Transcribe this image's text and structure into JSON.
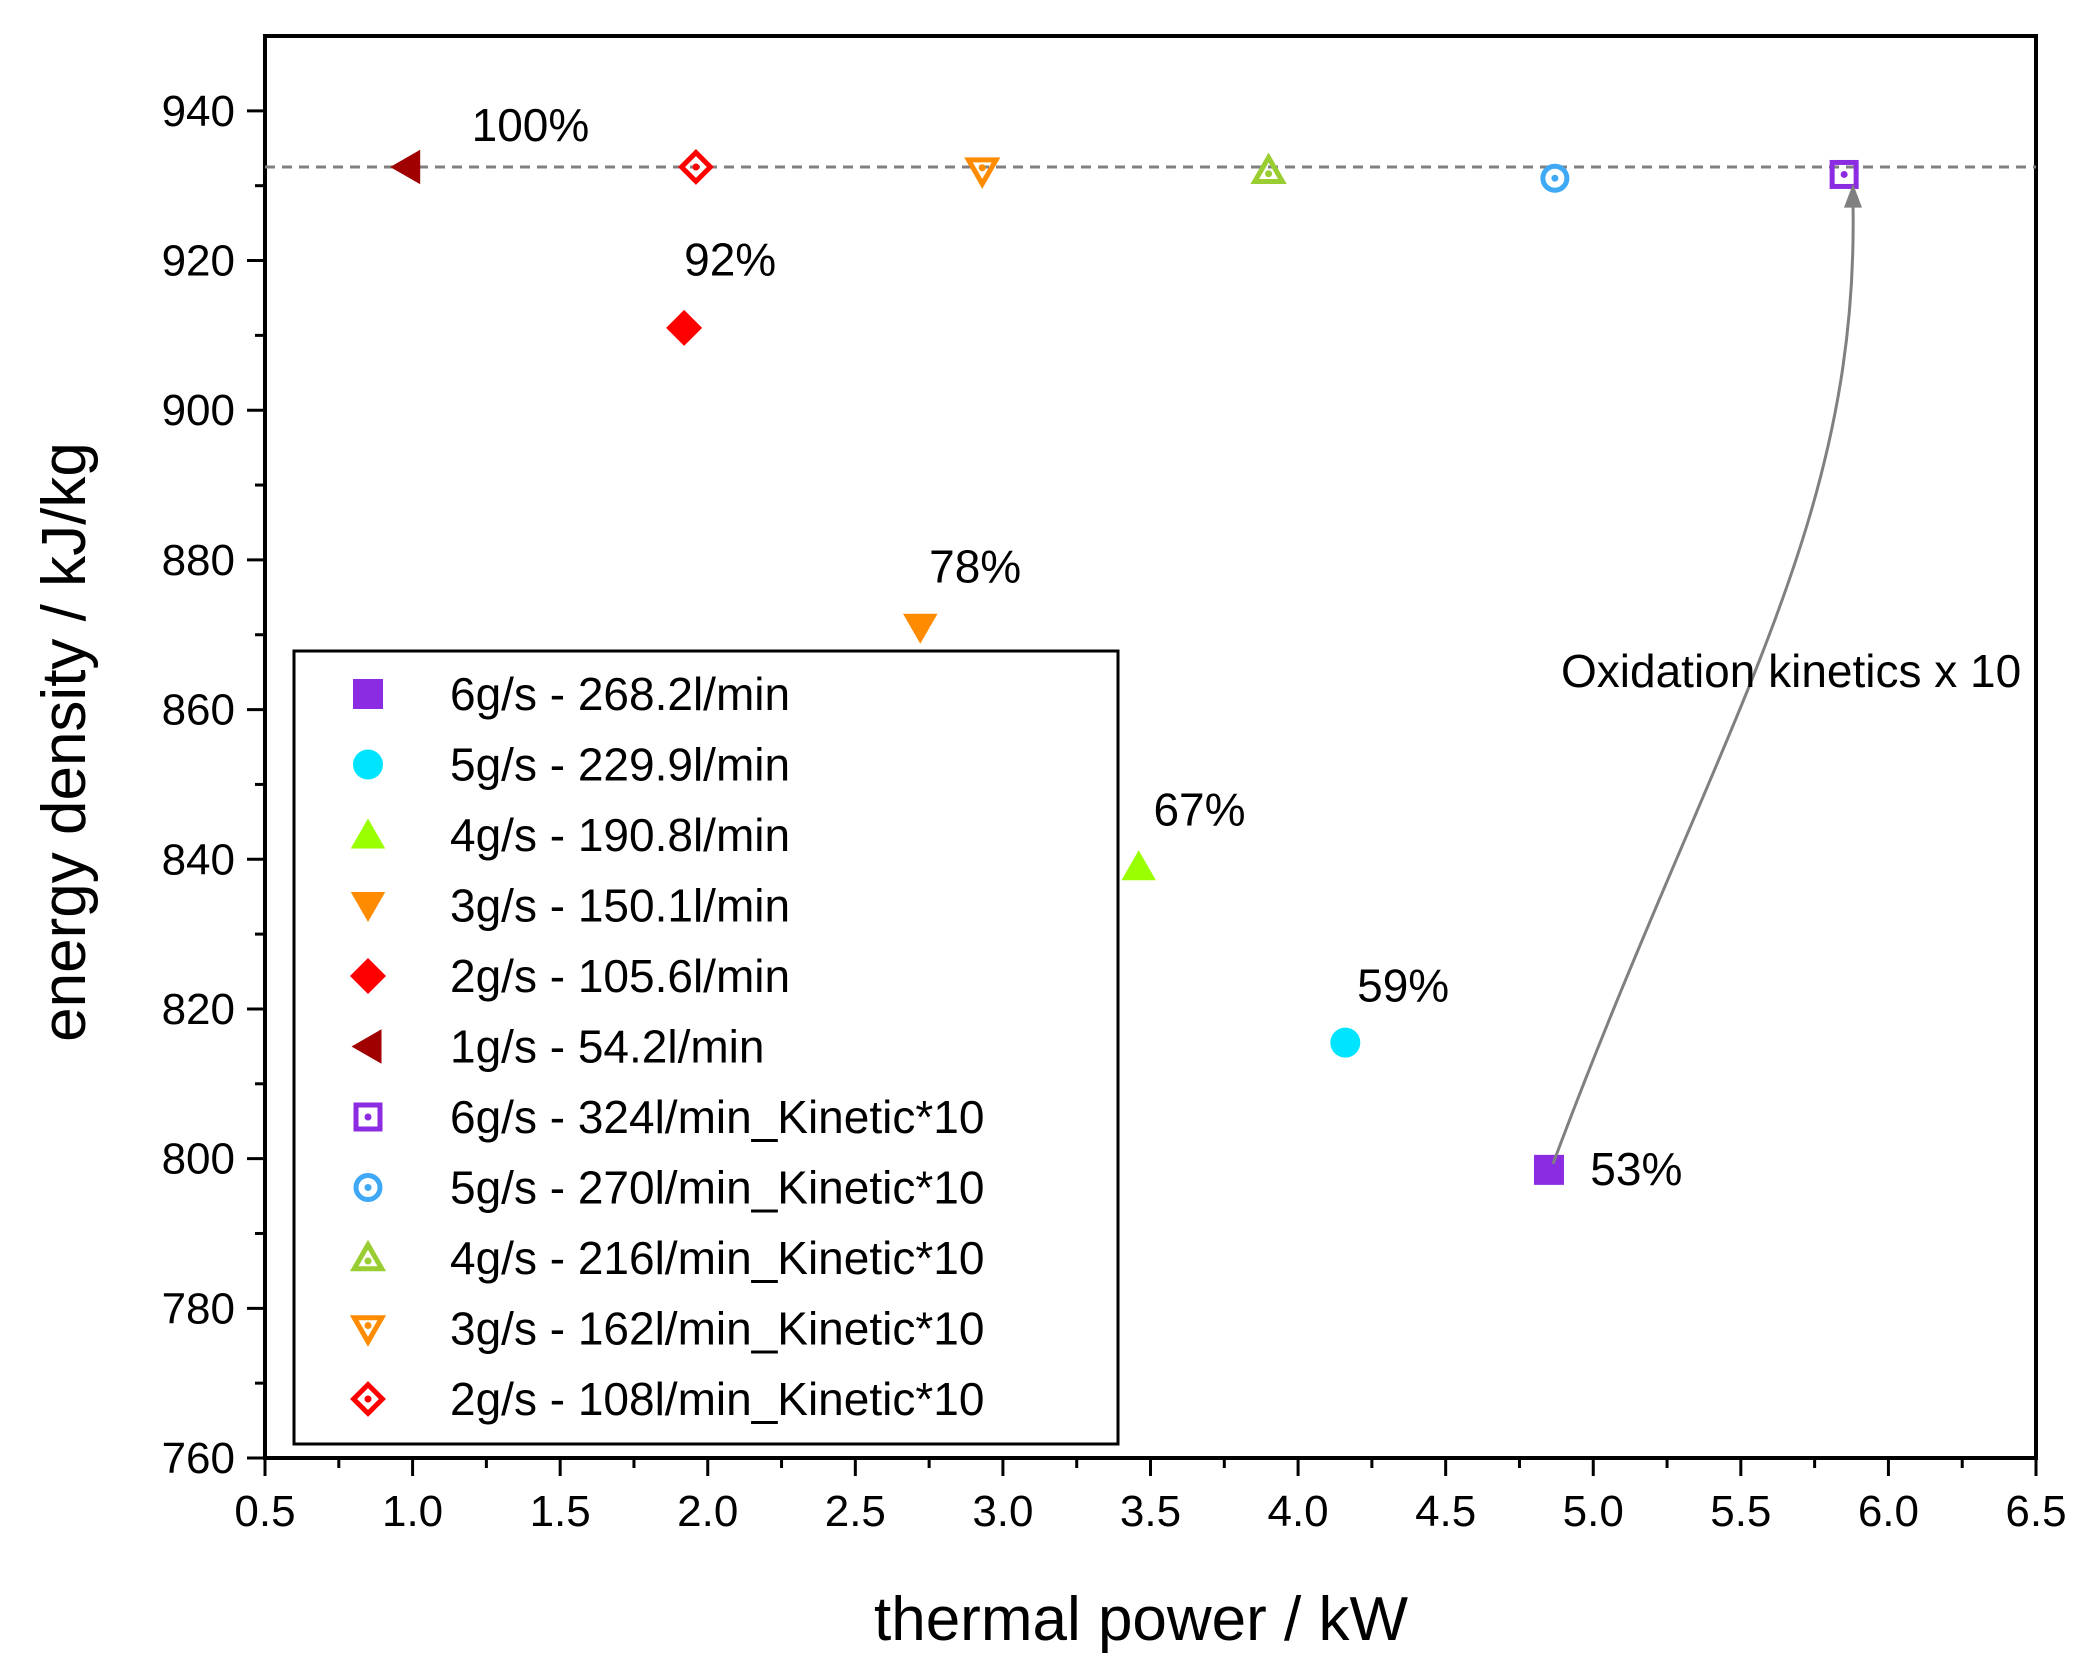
{
  "chart_data": {
    "type": "scatter",
    "title": "",
    "xlabel": "thermal power / kW",
    "ylabel": "energy density / kJ/kg",
    "xlim": [
      0.5,
      6.5
    ],
    "ylim": [
      760,
      950
    ],
    "x_ticks": [
      "0.5",
      "1.0",
      "1.5",
      "2.0",
      "2.5",
      "3.0",
      "3.5",
      "4.0",
      "4.5",
      "5.0",
      "5.5",
      "6.0",
      "6.5"
    ],
    "y_ticks": [
      "760",
      "780",
      "800",
      "820",
      "840",
      "860",
      "880",
      "900",
      "920",
      "940"
    ],
    "grid": false,
    "legend_position": "bottom-left",
    "reference_line": {
      "y": 932.5,
      "style": "dashed",
      "color": "#808080"
    },
    "series": [
      {
        "name": "6g/s - 268.2l/min",
        "marker": "square",
        "filled": true,
        "color": "#8B2BE2",
        "x": [
          4.85
        ],
        "y": [
          798.5
        ]
      },
      {
        "name": "5g/s - 229.9l/min",
        "marker": "circle",
        "filled": true,
        "color": "#00E5FF",
        "x": [
          4.16
        ],
        "y": [
          815.5
        ]
      },
      {
        "name": "4g/s - 190.8l/min",
        "marker": "triangle-up",
        "filled": true,
        "color": "#9AFF00",
        "x": [
          3.46
        ],
        "y": [
          839
        ]
      },
      {
        "name": "3g/s - 150.1l/min",
        "marker": "triangle-down",
        "filled": true,
        "color": "#FF8C00",
        "x": [
          2.72
        ],
        "y": [
          871
        ]
      },
      {
        "name": "2g/s - 105.6l/min",
        "marker": "diamond",
        "filled": true,
        "color": "#FF0000",
        "x": [
          1.92
        ],
        "y": [
          911
        ]
      },
      {
        "name": "1g/s - 54.2l/min",
        "marker": "triangle-left",
        "filled": true,
        "color": "#A00000",
        "x": [
          0.98
        ],
        "y": [
          932.5
        ]
      },
      {
        "name": "6g/s - 324l/min_Kinetic*10",
        "marker": "square",
        "filled": false,
        "color": "#8B2BE2",
        "x": [
          5.85
        ],
        "y": [
          931.5
        ]
      },
      {
        "name": "5g/s - 270l/min_Kinetic*10",
        "marker": "circle",
        "filled": false,
        "color": "#3FA9F5",
        "x": [
          4.87
        ],
        "y": [
          931
        ]
      },
      {
        "name": "4g/s - 216l/min_Kinetic*10",
        "marker": "triangle-up",
        "filled": false,
        "color": "#9ACD32",
        "x": [
          3.9
        ],
        "y": [
          932
        ]
      },
      {
        "name": "3g/s - 162l/min_Kinetic*10",
        "marker": "triangle-down",
        "filled": false,
        "color": "#FF8C00",
        "x": [
          2.93
        ],
        "y": [
          932
        ]
      },
      {
        "name": "2g/s - 108l/min_Kinetic*10",
        "marker": "diamond",
        "filled": false,
        "color": "#FF0000",
        "x": [
          1.96
        ],
        "y": [
          932.5
        ]
      }
    ],
    "annotations": [
      {
        "text": "100%",
        "x": 1.2,
        "y": 936
      },
      {
        "text": "92%",
        "x": 1.92,
        "y": 918
      },
      {
        "text": "78%",
        "x": 2.75,
        "y": 877
      },
      {
        "text": "67%",
        "x": 3.51,
        "y": 844.5
      },
      {
        "text": "59%",
        "x": 4.2,
        "y": 821
      },
      {
        "text": "53%",
        "x": 4.99,
        "y": 796.5
      },
      {
        "text": "Oxidation kinetics x 10",
        "x": 6.45,
        "y": 863
      }
    ],
    "arrow": {
      "from": {
        "x": 4.85,
        "y": 798.5
      },
      "to": {
        "x": 5.88,
        "y": 930
      },
      "color": "#808080"
    }
  }
}
